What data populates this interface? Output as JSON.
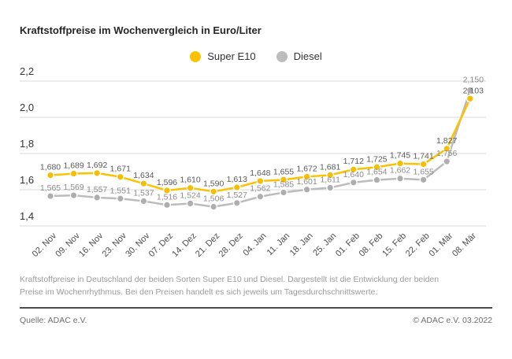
{
  "title": "Kraftstoffpreise im Wochenvergleich in Euro/Liter",
  "description": "Kraftstoffpreise in Deutschland der beiden Sorten Super E10 und Diesel. Dargestellt ist die Entwicklung der beiden Preise im Wochenrhythmus. Bei den Preisen handelt es sich jeweils um Tagesdurchschnittswerte.",
  "footer": {
    "source": "Quelle: ADAC e.V.",
    "copyright": "© ADAC e.V. 03.2022"
  },
  "colors": {
    "grid": "#d8d8d8",
    "axis_text": "#333333",
    "date_text": "#4d4d4d"
  },
  "chart_data": {
    "type": "line",
    "title": "Kraftstoffpreise im Wochenvergleich in Euro/Liter",
    "xlabel": "",
    "ylabel": "Euro/Liter",
    "ylim": [
      1.4,
      2.2
    ],
    "yticks": [
      2.2,
      2.0,
      1.8,
      1.6,
      1.4
    ],
    "grid": true,
    "legend_position": "top-center",
    "value_labels": true,
    "categories": [
      "02. Nov",
      "09. Nov",
      "16. Nov",
      "23. Nov",
      "30. Nov",
      "07. Dez",
      "14. Dez",
      "21. Dez",
      "28. Dez",
      "04. Jan",
      "11. Jan",
      "18. Jan",
      "25. Jan",
      "01. Feb",
      "08. Feb",
      "15. Feb",
      "22. Feb",
      "01. Mär",
      "08. Mär"
    ],
    "series": [
      {
        "name": "Super E10",
        "color": "#fcc200",
        "dot_color": "#f7bd00",
        "label_color": "#595959",
        "values": [
          1.68,
          1.689,
          1.692,
          1.671,
          1.634,
          1.596,
          1.61,
          1.59,
          1.613,
          1.648,
          1.655,
          1.672,
          1.681,
          1.712,
          1.725,
          1.745,
          1.741,
          1.827,
          2.103
        ]
      },
      {
        "name": "Diesel",
        "color": "#bcbcbc",
        "dot_color": "#aeaeae",
        "label_color": "#8c8c8c",
        "values": [
          1.565,
          1.569,
          1.557,
          1.551,
          1.537,
          1.516,
          1.524,
          1.506,
          1.527,
          1.562,
          1.585,
          1.601,
          1.611,
          1.64,
          1.654,
          1.662,
          1.655,
          1.756,
          2.15
        ]
      }
    ]
  }
}
